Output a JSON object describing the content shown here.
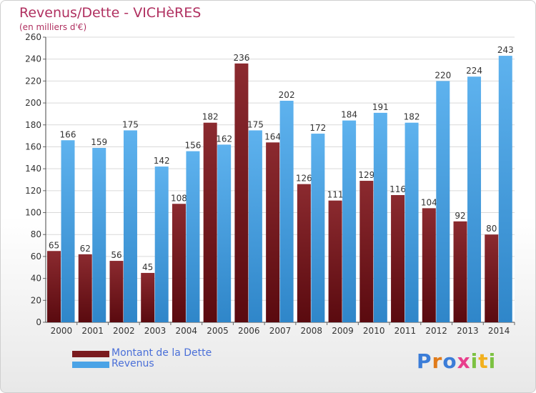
{
  "chart_data": {
    "type": "bar",
    "title": "Revenus/Dette - VICHèRES",
    "subtitle": "(en milliers d'€)",
    "categories": [
      "2000",
      "2001",
      "2002",
      "2003",
      "2004",
      "2005",
      "2006",
      "2007",
      "2008",
      "2009",
      "2010",
      "2011",
      "2012",
      "2013",
      "2014"
    ],
    "series": [
      {
        "name": "Montant de la Dette",
        "color": "#7a1a1e",
        "values": [
          65,
          62,
          56,
          45,
          108,
          182,
          236,
          164,
          126,
          111,
          129,
          116,
          104,
          92,
          80
        ]
      },
      {
        "name": "Revenus",
        "color": "#4aa3e6",
        "values": [
          166,
          159,
          175,
          142,
          156,
          162,
          175,
          202,
          172,
          184,
          191,
          182,
          220,
          224,
          243
        ]
      }
    ],
    "ylim": [
      0,
      260
    ],
    "yticks": [
      0,
      20,
      40,
      60,
      80,
      100,
      120,
      140,
      160,
      180,
      200,
      220,
      240,
      260
    ],
    "grid": true,
    "legend_position": "bottom-left"
  },
  "legend": {
    "items": [
      {
        "label": "Montant de la Dette",
        "color": "#7a1a1e"
      },
      {
        "label": "Revenus",
        "color": "#4aa3e6"
      }
    ]
  },
  "logo": {
    "letters": [
      "P",
      "r",
      "o",
      "x",
      "i",
      "t",
      "i"
    ],
    "colors": [
      "#3b7dd8",
      "#e07b1a",
      "#3b7dd8",
      "#e83e8c",
      "#7cc242",
      "#f2b01e",
      "#7cc242"
    ]
  }
}
